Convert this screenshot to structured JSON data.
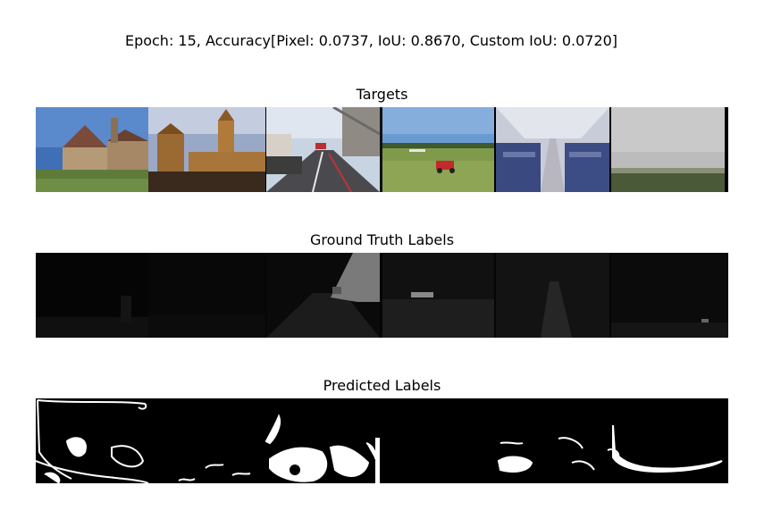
{
  "header": {
    "title": "Epoch: 15, Accuracy[Pixel: 0.0737, IoU: 0.8670, Custom IoU: 0.0720]"
  },
  "panels": [
    {
      "title": "Targets"
    },
    {
      "title": "Ground Truth Labels"
    },
    {
      "title": "Predicted Labels"
    }
  ],
  "chart_data": {
    "type": "other",
    "title": "Epoch: 15, Accuracy[Pixel: 0.0737, IoU: 0.8670, Custom IoU: 0.0720]",
    "epoch": 15,
    "metrics": {
      "pixel": 0.0737,
      "iou": 0.867,
      "custom_iou": 0.072
    },
    "rows": [
      "Targets",
      "Ground Truth Labels",
      "Predicted Labels"
    ],
    "images_per_row": 6,
    "image_scenes": [
      "house",
      "church",
      "street",
      "field-with-mower",
      "airplane-cabin",
      "foggy-landscape"
    ]
  }
}
